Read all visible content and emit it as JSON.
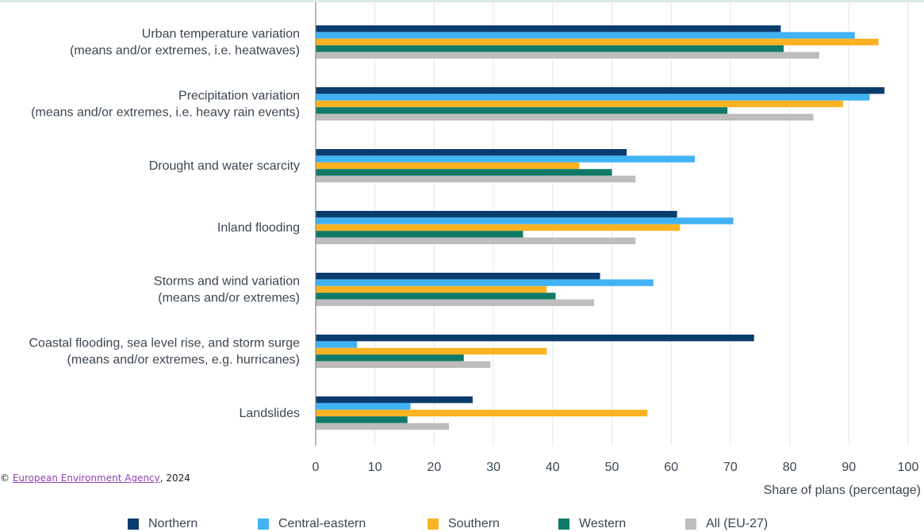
{
  "chart_data": {
    "type": "bar",
    "orientation": "horizontal",
    "categories": [
      [
        "Urban temperature variation",
        "(means and/or extremes, i.e. heatwaves)"
      ],
      [
        "Precipitation variation",
        "(means and/or extremes, i.e. heavy rain events)"
      ],
      [
        "Drought and water scarcity"
      ],
      [
        "Inland flooding"
      ],
      [
        "Storms and wind variation",
        "(means and/or extremes)"
      ],
      [
        "Coastal flooding, sea level rise, and storm surge",
        "(means and/or extremes, e.g. hurricanes)"
      ],
      [
        "Landslides"
      ]
    ],
    "series": [
      {
        "name": "Northern",
        "color": "#0b3c6e",
        "values": [
          78.5,
          96,
          52.5,
          61,
          48,
          74,
          26.5
        ]
      },
      {
        "name": "Central-eastern",
        "color": "#41b3f5",
        "values": [
          91,
          93.5,
          64,
          70.5,
          57,
          7,
          16
        ]
      },
      {
        "name": "Southern",
        "color": "#fbb324",
        "values": [
          95,
          89,
          44.5,
          61.5,
          39,
          39,
          56
        ]
      },
      {
        "name": "Western",
        "color": "#0f7a67",
        "values": [
          79,
          69.5,
          50,
          35,
          40.5,
          25,
          15.5
        ]
      },
      {
        "name": "All (EU-27)",
        "color": "#bdbdbd",
        "values": [
          85,
          84,
          54,
          54,
          47,
          29.5,
          22.5
        ]
      }
    ],
    "xlim": [
      0,
      100
    ],
    "xticks": [
      0,
      10,
      20,
      30,
      40,
      50,
      60,
      70,
      80,
      90,
      100
    ],
    "xlabel": "Share of plans (percentage)",
    "ylabel": "",
    "grid": "vertical",
    "legend_position": "bottom"
  },
  "credit": {
    "symbol": "©",
    "link_text": "European Environment Agency",
    "suffix": ", 2024"
  }
}
